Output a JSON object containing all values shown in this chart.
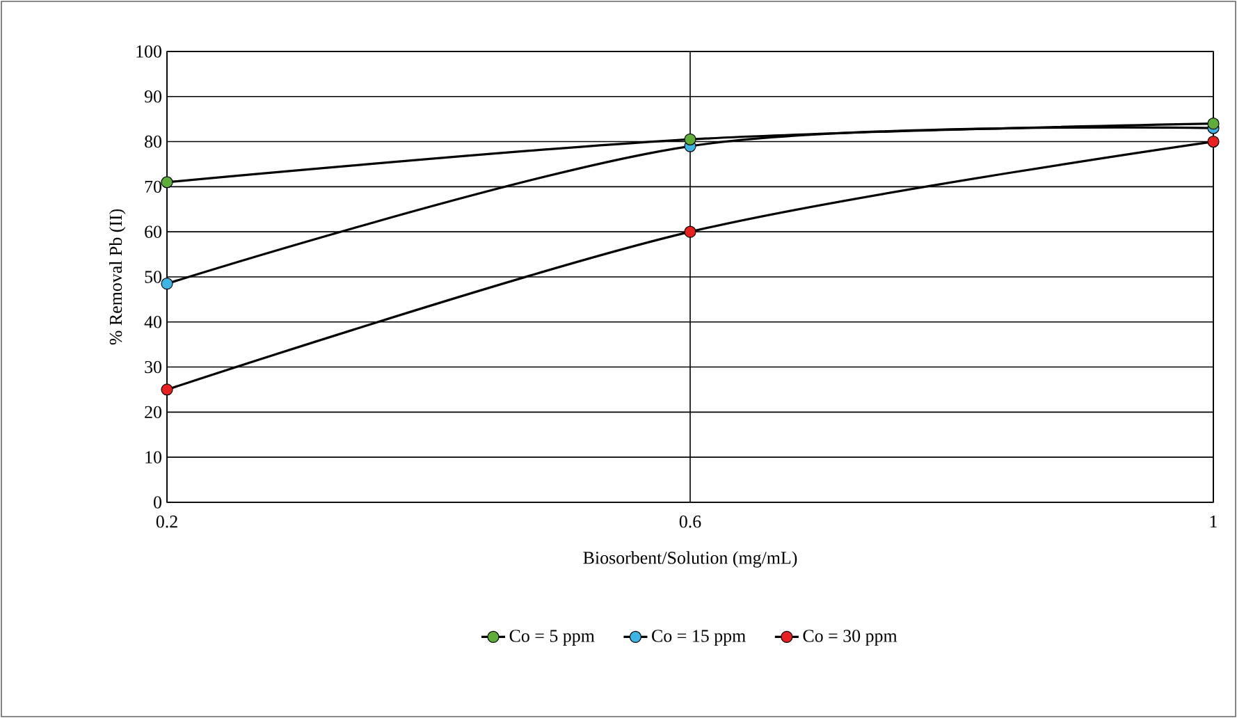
{
  "chart_data": {
    "type": "line",
    "xlabel": "Biosorbent/Solution (mg/mL)",
    "ylabel": "% Removal Pb (II)",
    "x": [
      0.2,
      0.6,
      1
    ],
    "xlim": [
      0.2,
      1
    ],
    "xticks": [
      0.2,
      0.6,
      1
    ],
    "ylim": [
      0,
      100
    ],
    "yticks": [
      0,
      10,
      20,
      30,
      40,
      50,
      60,
      70,
      80,
      90,
      100
    ],
    "grid": true,
    "legend": "bottom",
    "marker": "circle",
    "line_style": "solid",
    "series": [
      {
        "name": "Co = 5 ppm",
        "color": "#5fae3a",
        "values": [
          71,
          80.5,
          84
        ]
      },
      {
        "name": "Co = 15 ppm",
        "color": "#3db4e6",
        "values": [
          48.5,
          79,
          83
        ]
      },
      {
        "name": "Co = 30 ppm",
        "color": "#e8201f",
        "values": [
          25,
          60,
          80
        ]
      }
    ]
  }
}
